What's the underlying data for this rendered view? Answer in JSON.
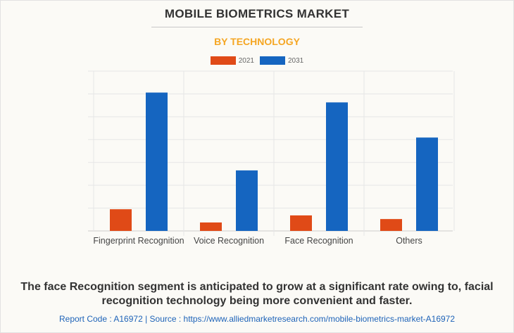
{
  "chart_data": {
    "type": "bar",
    "title": "MOBILE BIOMETRICS MARKET",
    "subtitle": "BY TECHNOLOGY",
    "categories": [
      "Fingerprint Recognition",
      "Voice Recognition",
      "Face Recognition",
      "Others"
    ],
    "series": [
      {
        "name": "2021",
        "color": "#e04a17",
        "values": [
          0.95,
          0.37,
          0.68,
          0.52
        ]
      },
      {
        "name": "2031",
        "color": "#1565c0",
        "values": [
          6.06,
          2.65,
          5.63,
          4.09
        ]
      }
    ],
    "ylim": [
      0,
      7
    ],
    "y_unit_note_hidden": false,
    "grid": true,
    "legend": "top-center",
    "xlabel": "",
    "ylabel": ""
  },
  "caption": "The face Recognition segment is anticipated to grow at a significant rate owing to, facial recognition technology being more convenient and faster.",
  "source": "Report Code : A16972  |  Source : https://www.alliedmarketresearch.com/mobile-biometrics-market-A16972"
}
